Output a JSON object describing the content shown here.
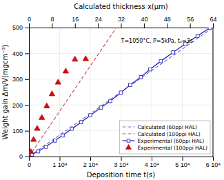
{
  "chart_data": {
    "type": "line",
    "title": "",
    "xlabel": "Deposition time t(s)",
    "ylabel": "Weight gain Δm/V(mgcm⁻³)",
    "x2label": "Calculated thickness x(μm)",
    "annotation": "T=1050°C, P=5kPa, tₛ=3s",
    "xlim": [
      0,
      60000
    ],
    "ylim": [
      0,
      500
    ],
    "x2lim": [
      0,
      64
    ],
    "xticks": [
      0,
      {
        "value": 10000,
        "label": "1 10⁴"
      },
      {
        "value": 20000,
        "label": "2 10⁴"
      },
      {
        "value": 30000,
        "label": "3 10⁴"
      },
      {
        "value": 40000,
        "label": "4 10⁴"
      },
      {
        "value": 50000,
        "label": "5 10⁴"
      },
      {
        "value": 60000,
        "label": "6 10⁴"
      }
    ],
    "yticks": [
      0,
      100,
      200,
      300,
      400,
      500
    ],
    "x2ticks": [
      0,
      8,
      16,
      24,
      32,
      40,
      48,
      56,
      64
    ],
    "grid": true,
    "legend": "lower right",
    "series": [
      {
        "name": "Calculated (60ppi HAL)",
        "color": "#7777cc",
        "line_style": "dashed",
        "x": [
          0,
          60000
        ],
        "values": [
          0,
          500
        ]
      },
      {
        "name": "Calculated (100ppi HAL)",
        "color": "#cc5555",
        "line_style": "dashed",
        "x": [
          0,
          28500
        ],
        "values": [
          0,
          500
        ]
      },
      {
        "name": "Experimental (60ppi HAL)",
        "color": "#2222bb",
        "line_style": "solid",
        "marker": "open-square",
        "x": [
          0,
          1000,
          3000,
          5500,
          8500,
          11000,
          14000,
          17000,
          20000,
          23500,
          26500,
          30000,
          33000,
          36500,
          39500,
          43000,
          47000,
          51000,
          55000,
          59000
        ],
        "values": [
          0,
          8,
          20,
          38,
          62,
          82,
          108,
          133,
          160,
          190,
          215,
          248,
          278,
          308,
          338,
          370,
          404,
          437,
          468,
          499
        ]
      },
      {
        "name": "Experimental (100ppi HAL)",
        "color": "#cc1111",
        "type": "scatter",
        "marker": "triangle",
        "x": [
          0,
          600,
          1500,
          2700,
          4200,
          5800,
          7500,
          9500,
          12000,
          15000,
          18500
        ],
        "values": [
          0,
          18,
          65,
          108,
          150,
          195,
          242,
          287,
          330,
          376,
          378
        ]
      }
    ]
  }
}
